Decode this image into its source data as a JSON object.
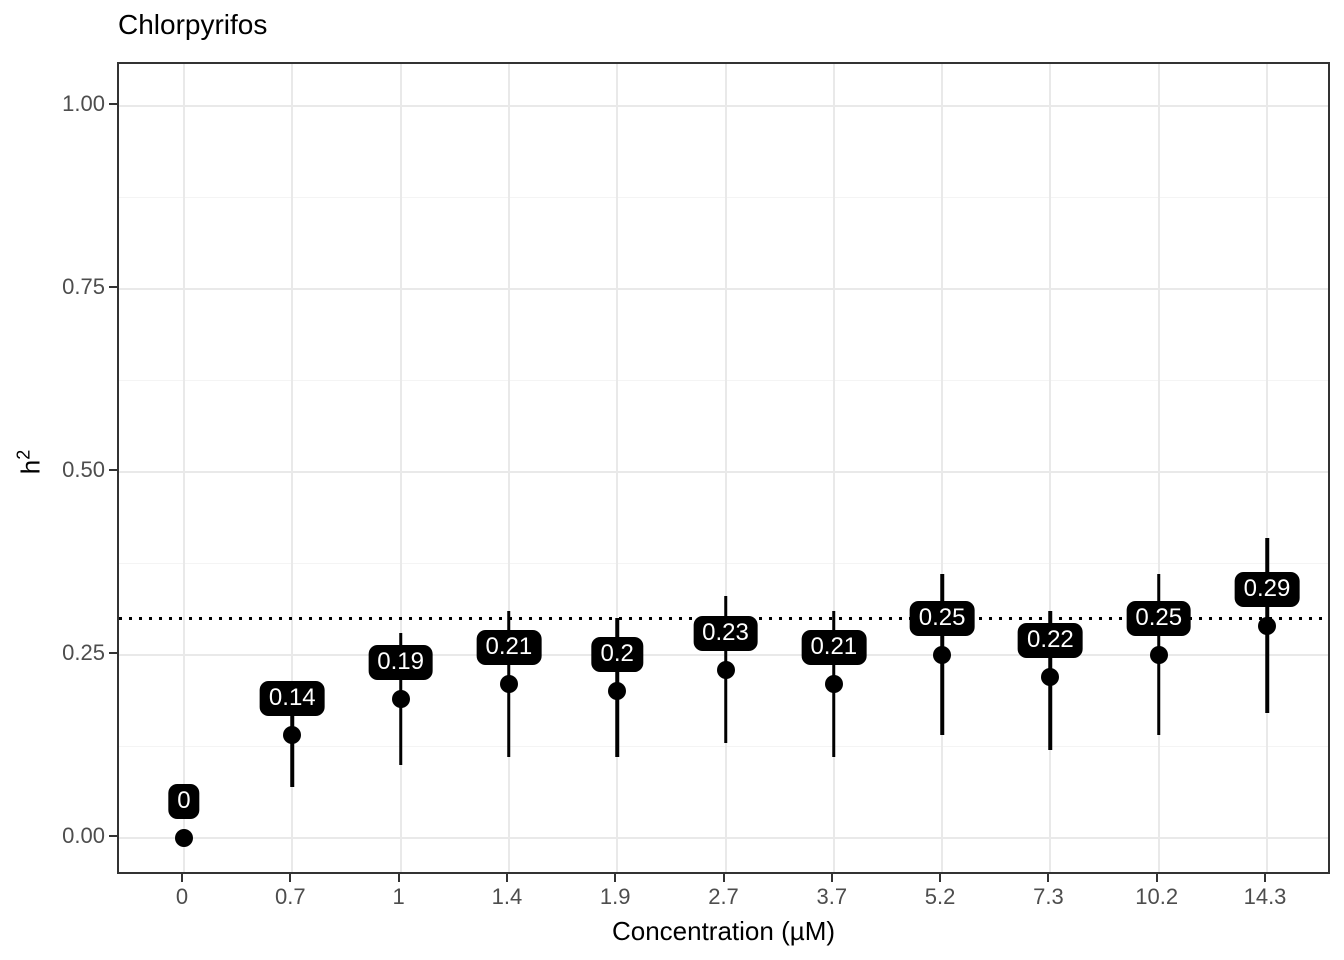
{
  "chart_data": {
    "type": "scatter",
    "title": "Chlorpyrifos",
    "xlabel": "Concentration (µM)",
    "ylabel": "h²",
    "ylabel_base": "h",
    "ylabel_sup": "2",
    "x_categories": [
      "0",
      "0.7",
      "1",
      "1.4",
      "1.9",
      "2.7",
      "3.7",
      "5.2",
      "7.3",
      "10.2",
      "14.3"
    ],
    "points": [
      {
        "x": "0",
        "y": 0.0,
        "lo": 0.0,
        "hi": 0.0,
        "label": "0"
      },
      {
        "x": "0.7",
        "y": 0.14,
        "lo": 0.07,
        "hi": 0.21,
        "label": "0.14"
      },
      {
        "x": "1",
        "y": 0.19,
        "lo": 0.1,
        "hi": 0.28,
        "label": "0.19"
      },
      {
        "x": "1.4",
        "y": 0.21,
        "lo": 0.11,
        "hi": 0.31,
        "label": "0.21"
      },
      {
        "x": "1.9",
        "y": 0.2,
        "lo": 0.11,
        "hi": 0.3,
        "label": "0.2"
      },
      {
        "x": "2.7",
        "y": 0.23,
        "lo": 0.13,
        "hi": 0.33,
        "label": "0.23"
      },
      {
        "x": "3.7",
        "y": 0.21,
        "lo": 0.11,
        "hi": 0.31,
        "label": "0.21"
      },
      {
        "x": "5.2",
        "y": 0.25,
        "lo": 0.14,
        "hi": 0.36,
        "label": "0.25"
      },
      {
        "x": "7.3",
        "y": 0.22,
        "lo": 0.12,
        "hi": 0.31,
        "label": "0.22"
      },
      {
        "x": "10.2",
        "y": 0.25,
        "lo": 0.14,
        "hi": 0.36,
        "label": "0.25"
      },
      {
        "x": "14.3",
        "y": 0.29,
        "lo": 0.17,
        "hi": 0.41,
        "label": "0.29"
      }
    ],
    "reference_line": {
      "y": 0.3,
      "style": "dotted",
      "color": "#000000"
    },
    "ylim": [
      0,
      1
    ],
    "y_major_ticks": [
      {
        "v": 0.0,
        "label": "0.00"
      },
      {
        "v": 0.25,
        "label": "0.25"
      },
      {
        "v": 0.5,
        "label": "0.50"
      },
      {
        "v": 0.75,
        "label": "0.75"
      },
      {
        "v": 1.0,
        "label": "1.00"
      }
    ],
    "y_minor_ticks": [
      0.125,
      0.375,
      0.625,
      0.875
    ],
    "grid": true,
    "legend_position": "none",
    "colors": {
      "point": "#000000",
      "errorbar": "#000000",
      "label_bg": "#000000",
      "label_text": "#ffffff",
      "grid_major": "#e9e9e9",
      "grid_minor": "#f4f4f4",
      "panel_border": "#333333",
      "tick": "#333333",
      "tick_label": "#4d4d4d",
      "reference": "#000000",
      "background": "#ffffff"
    }
  }
}
